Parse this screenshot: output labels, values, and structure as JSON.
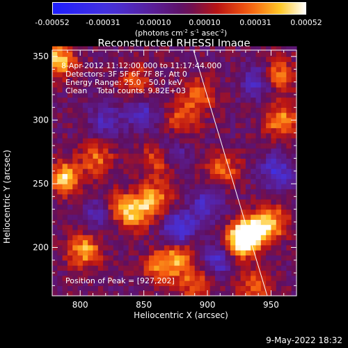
{
  "colorbar": {
    "ticks": [
      "-0.00052",
      "-0.00031",
      "-0.00010",
      "0.00010",
      "0.00031",
      "0.00052"
    ],
    "units_base": "(photons cm",
    "units_exp1": "-2",
    "units_mid": " s",
    "units_exp2": "-1",
    "units_mid2": " asec",
    "units_exp3": "-2",
    "units_end": ")"
  },
  "chart_data": {
    "type": "heatmap",
    "title": "Reconstructed RHESSI Image",
    "xlabel": "Heliocentric X (arcsec)",
    "ylabel": "Heliocentric Y (arcsec)",
    "xlim": [
      778,
      970
    ],
    "ylim": [
      162,
      355
    ],
    "x_ticks": [
      800,
      850,
      900,
      950
    ],
    "y_ticks": [
      200,
      250,
      300,
      350
    ],
    "color_range": [
      -0.00052,
      0.00052
    ],
    "colormap": "blue-purple-red-yellow-white",
    "peak": [
      927,
      202
    ],
    "limb_line": [
      [
        889,
        355
      ],
      [
        947,
        162
      ]
    ],
    "hot_regions": [
      {
        "x": 927,
        "y": 205,
        "level": 1.0
      },
      {
        "x": 936,
        "y": 214,
        "level": 0.85
      },
      {
        "x": 788,
        "y": 255,
        "level": 0.8
      },
      {
        "x": 783,
        "y": 347,
        "level": 0.8
      },
      {
        "x": 803,
        "y": 198,
        "level": 0.7
      },
      {
        "x": 842,
        "y": 228,
        "level": 0.72
      },
      {
        "x": 858,
        "y": 238,
        "level": 0.68
      },
      {
        "x": 825,
        "y": 232,
        "level": 0.6
      },
      {
        "x": 862,
        "y": 270,
        "level": 0.6
      },
      {
        "x": 878,
        "y": 192,
        "level": 0.6
      },
      {
        "x": 862,
        "y": 185,
        "level": 0.55
      },
      {
        "x": 952,
        "y": 220,
        "level": 0.6
      },
      {
        "x": 958,
        "y": 300,
        "level": 0.65
      },
      {
        "x": 956,
        "y": 335,
        "level": 0.6
      },
      {
        "x": 893,
        "y": 320,
        "level": 0.55
      },
      {
        "x": 912,
        "y": 262,
        "level": 0.55
      },
      {
        "x": 813,
        "y": 270,
        "level": 0.5
      },
      {
        "x": 890,
        "y": 172,
        "level": 0.5
      },
      {
        "x": 937,
        "y": 170,
        "level": 0.5
      },
      {
        "x": 844,
        "y": 330,
        "level": 0.45
      },
      {
        "x": 880,
        "y": 300,
        "level": 0.45
      }
    ],
    "cold_regions": [
      {
        "x": 878,
        "y": 215,
        "level": -0.7
      },
      {
        "x": 908,
        "y": 190,
        "level": -0.5
      },
      {
        "x": 817,
        "y": 228,
        "level": -0.6
      },
      {
        "x": 870,
        "y": 275,
        "level": -0.45
      },
      {
        "x": 955,
        "y": 260,
        "level": -0.55
      },
      {
        "x": 848,
        "y": 305,
        "level": -0.45
      },
      {
        "x": 940,
        "y": 330,
        "level": -0.5
      },
      {
        "x": 900,
        "y": 235,
        "level": -0.45
      },
      {
        "x": 820,
        "y": 300,
        "level": -0.4
      }
    ],
    "annotations": [
      "8-Apr-2012 11:12:00.000 to 11:17:44.000",
      "Detectors: 3F 5F 6F 7F 8F, Att 0",
      "Energy Range: 25.0 - 50.0 keV",
      "Clean    Total counts: 9.82E+03"
    ],
    "peak_label": "Position of Peak = [927,202]"
  },
  "footer": "9-May-2022 18:32"
}
